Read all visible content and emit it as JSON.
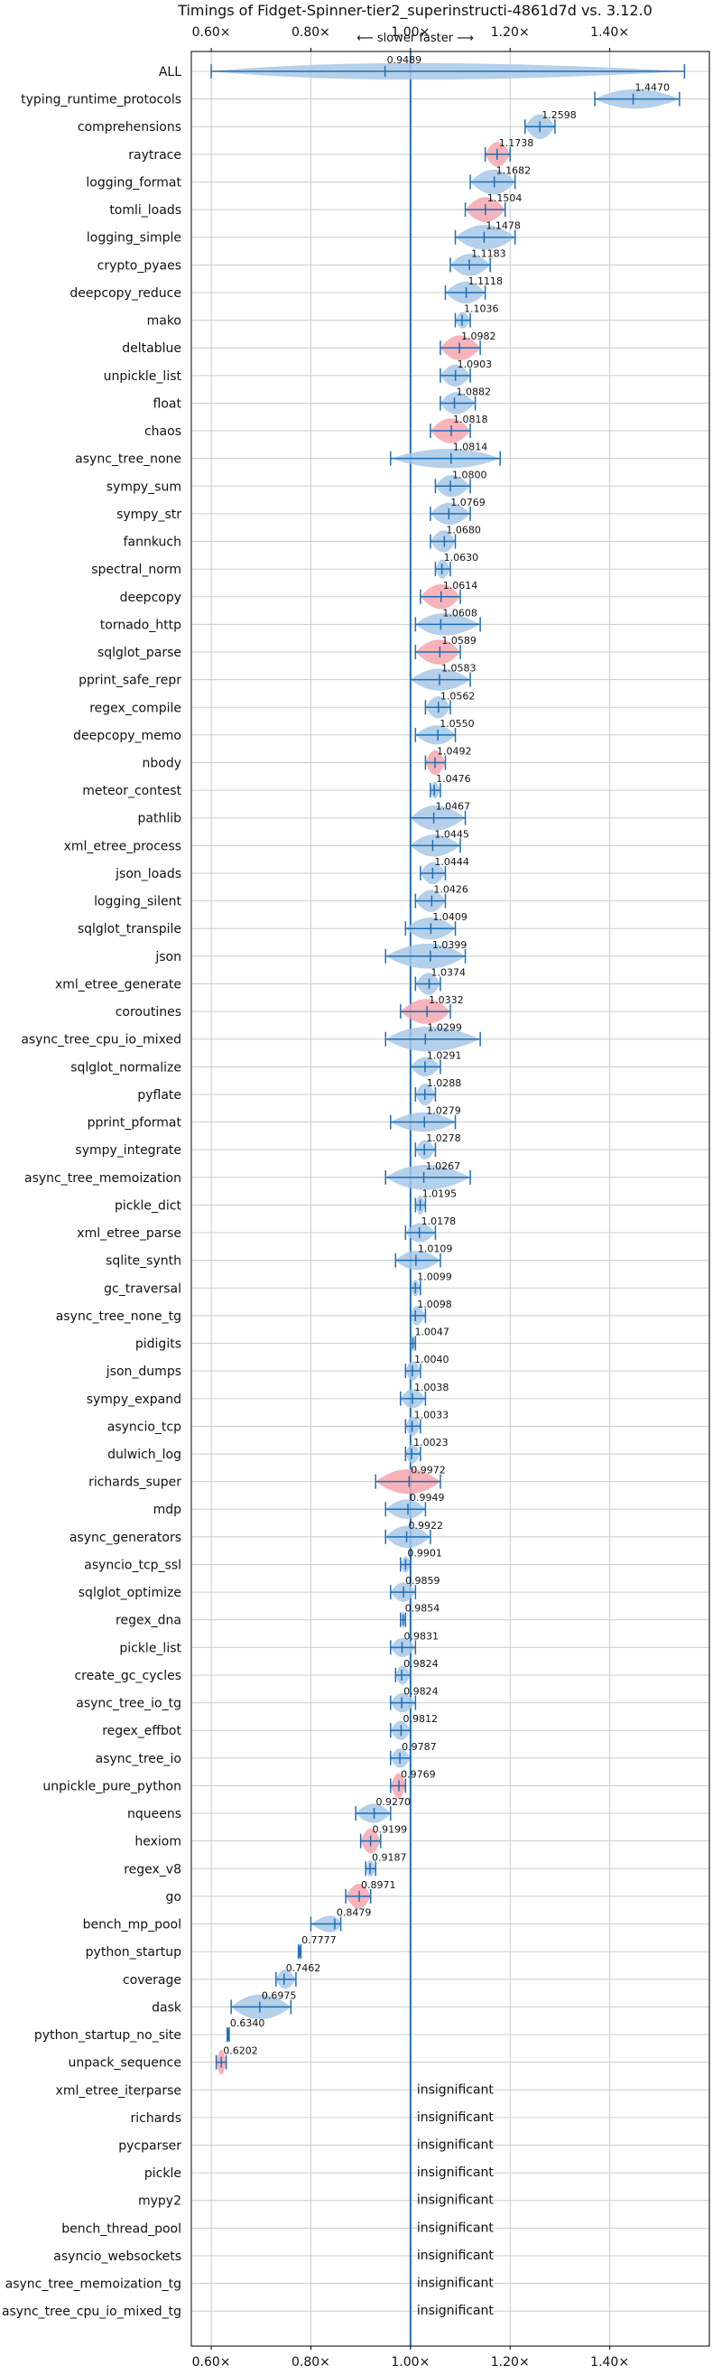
{
  "chart_data": {
    "type": "violin",
    "title": "Timings of Fidget-Spinner-tier2_superinstructi-4861d7d vs. 3.12.0",
    "subtitle": "⟵ slower   faster ⟶",
    "xlim": [
      0.56,
      1.6
    ],
    "xticks": [
      {
        "value": 0.6,
        "label": "0.60×"
      },
      {
        "value": 0.8,
        "label": "0.80×"
      },
      {
        "value": 1.0,
        "label": "1.00×"
      },
      {
        "value": 1.2,
        "label": "1.20×"
      },
      {
        "value": 1.4,
        "label": "1.40×"
      }
    ],
    "grid": true,
    "reference_line": 1.0,
    "colors": {
      "faster": "#a7c8e6",
      "slower": "#f4a6ae",
      "line": "#1f6fb4",
      "grid": "#cccccc"
    },
    "insignificant_text": "insignificant",
    "benchmarks": [
      {
        "name": "ALL",
        "value": 0.9489,
        "label": "0.9489",
        "min": 0.6,
        "max": 1.55,
        "color": "faster",
        "spread": 0.3
      },
      {
        "name": "typing_runtime_protocols",
        "value": 1.447,
        "label": "1.4470",
        "min": 1.37,
        "max": 1.54,
        "color": "faster",
        "spread": 0.35
      },
      {
        "name": "comprehensions",
        "value": 1.2598,
        "label": "1.2598",
        "min": 1.23,
        "max": 1.29,
        "color": "faster",
        "spread": 0.45
      },
      {
        "name": "raytrace",
        "value": 1.1738,
        "label": "1.1738",
        "min": 1.15,
        "max": 1.2,
        "color": "slower",
        "spread": 0.45
      },
      {
        "name": "logging_format",
        "value": 1.1682,
        "label": "1.1682",
        "min": 1.12,
        "max": 1.21,
        "color": "faster",
        "spread": 0.45
      },
      {
        "name": "tomli_loads",
        "value": 1.1504,
        "label": "1.1504",
        "min": 1.11,
        "max": 1.19,
        "color": "slower",
        "spread": 0.45
      },
      {
        "name": "logging_simple",
        "value": 1.1478,
        "label": "1.1478",
        "min": 1.09,
        "max": 1.21,
        "color": "faster",
        "spread": 0.45
      },
      {
        "name": "crypto_pyaes",
        "value": 1.1183,
        "label": "1.1183",
        "min": 1.08,
        "max": 1.16,
        "color": "faster",
        "spread": 0.4
      },
      {
        "name": "deepcopy_reduce",
        "value": 1.1118,
        "label": "1.1118",
        "min": 1.07,
        "max": 1.15,
        "color": "faster",
        "spread": 0.4
      },
      {
        "name": "mako",
        "value": 1.1036,
        "label": "1.1036",
        "min": 1.09,
        "max": 1.12,
        "color": "faster",
        "spread": 0.3
      },
      {
        "name": "deltablue",
        "value": 1.0982,
        "label": "1.0982",
        "min": 1.06,
        "max": 1.14,
        "color": "slower",
        "spread": 0.45
      },
      {
        "name": "unpickle_list",
        "value": 1.0903,
        "label": "1.0903",
        "min": 1.06,
        "max": 1.12,
        "color": "faster",
        "spread": 0.4
      },
      {
        "name": "float",
        "value": 1.0882,
        "label": "1.0882",
        "min": 1.06,
        "max": 1.13,
        "color": "faster",
        "spread": 0.4
      },
      {
        "name": "chaos",
        "value": 1.0818,
        "label": "1.0818",
        "min": 1.04,
        "max": 1.12,
        "color": "slower",
        "spread": 0.45
      },
      {
        "name": "async_tree_none",
        "value": 1.0814,
        "label": "1.0814",
        "min": 0.96,
        "max": 1.18,
        "color": "faster",
        "spread": 0.35
      },
      {
        "name": "sympy_sum",
        "value": 1.08,
        "label": "1.0800",
        "min": 1.05,
        "max": 1.12,
        "color": "faster",
        "spread": 0.4
      },
      {
        "name": "sympy_str",
        "value": 1.0769,
        "label": "1.0769",
        "min": 1.04,
        "max": 1.12,
        "color": "faster",
        "spread": 0.4
      },
      {
        "name": "fannkuch",
        "value": 1.068,
        "label": "1.0680",
        "min": 1.04,
        "max": 1.09,
        "color": "faster",
        "spread": 0.4
      },
      {
        "name": "spectral_norm",
        "value": 1.063,
        "label": "1.0630",
        "min": 1.05,
        "max": 1.08,
        "color": "faster",
        "spread": 0.35
      },
      {
        "name": "deepcopy",
        "value": 1.0614,
        "label": "1.0614",
        "min": 1.02,
        "max": 1.1,
        "color": "slower",
        "spread": 0.45
      },
      {
        "name": "tornado_http",
        "value": 1.0608,
        "label": "1.0608",
        "min": 1.01,
        "max": 1.14,
        "color": "faster",
        "spread": 0.4
      },
      {
        "name": "sqlglot_parse",
        "value": 1.0589,
        "label": "1.0589",
        "min": 1.01,
        "max": 1.1,
        "color": "slower",
        "spread": 0.45
      },
      {
        "name": "pprint_safe_repr",
        "value": 1.0583,
        "label": "1.0583",
        "min": 1.0,
        "max": 1.12,
        "color": "faster",
        "spread": 0.4
      },
      {
        "name": "regex_compile",
        "value": 1.0562,
        "label": "1.0562",
        "min": 1.03,
        "max": 1.08,
        "color": "faster",
        "spread": 0.4
      },
      {
        "name": "deepcopy_memo",
        "value": 1.055,
        "label": "1.0550",
        "min": 1.01,
        "max": 1.09,
        "color": "faster",
        "spread": 0.35
      },
      {
        "name": "nbody",
        "value": 1.0492,
        "label": "1.0492",
        "min": 1.03,
        "max": 1.07,
        "color": "slower",
        "spread": 0.45
      },
      {
        "name": "meteor_contest",
        "value": 1.0476,
        "label": "1.0476",
        "min": 1.04,
        "max": 1.06,
        "color": "faster",
        "spread": 0.3
      },
      {
        "name": "pathlib",
        "value": 1.0467,
        "label": "1.0467",
        "min": 1.0,
        "max": 1.11,
        "color": "faster",
        "spread": 0.45
      },
      {
        "name": "xml_etree_process",
        "value": 1.0445,
        "label": "1.0445",
        "min": 1.0,
        "max": 1.1,
        "color": "faster",
        "spread": 0.4
      },
      {
        "name": "json_loads",
        "value": 1.0444,
        "label": "1.0444",
        "min": 1.02,
        "max": 1.07,
        "color": "faster",
        "spread": 0.4
      },
      {
        "name": "logging_silent",
        "value": 1.0426,
        "label": "1.0426",
        "min": 1.01,
        "max": 1.07,
        "color": "faster",
        "spread": 0.4
      },
      {
        "name": "sqlglot_transpile",
        "value": 1.0409,
        "label": "1.0409",
        "min": 0.99,
        "max": 1.09,
        "color": "faster",
        "spread": 0.4
      },
      {
        "name": "json",
        "value": 1.0399,
        "label": "1.0399",
        "min": 0.95,
        "max": 1.11,
        "color": "faster",
        "spread": 0.45
      },
      {
        "name": "xml_etree_generate",
        "value": 1.0374,
        "label": "1.0374",
        "min": 1.01,
        "max": 1.06,
        "color": "faster",
        "spread": 0.4
      },
      {
        "name": "coroutines",
        "value": 1.0332,
        "label": "1.0332",
        "min": 0.98,
        "max": 1.08,
        "color": "slower",
        "spread": 0.45
      },
      {
        "name": "async_tree_cpu_io_mixed",
        "value": 1.0299,
        "label": "1.0299",
        "min": 0.95,
        "max": 1.14,
        "color": "faster",
        "spread": 0.45
      },
      {
        "name": "sqlglot_normalize",
        "value": 1.0291,
        "label": "1.0291",
        "min": 1.0,
        "max": 1.06,
        "color": "faster",
        "spread": 0.35
      },
      {
        "name": "pyflate",
        "value": 1.0288,
        "label": "1.0288",
        "min": 1.01,
        "max": 1.05,
        "color": "faster",
        "spread": 0.4
      },
      {
        "name": "pprint_pformat",
        "value": 1.0279,
        "label": "1.0279",
        "min": 0.96,
        "max": 1.09,
        "color": "faster",
        "spread": 0.35
      },
      {
        "name": "sympy_integrate",
        "value": 1.0278,
        "label": "1.0278",
        "min": 1.01,
        "max": 1.05,
        "color": "faster",
        "spread": 0.35
      },
      {
        "name": "async_tree_memoization",
        "value": 1.0267,
        "label": "1.0267",
        "min": 0.95,
        "max": 1.12,
        "color": "faster",
        "spread": 0.45
      },
      {
        "name": "pickle_dict",
        "value": 1.0195,
        "label": "1.0195",
        "min": 1.01,
        "max": 1.03,
        "color": "faster",
        "spread": 0.35
      },
      {
        "name": "xml_etree_parse",
        "value": 1.0178,
        "label": "1.0178",
        "min": 0.99,
        "max": 1.05,
        "color": "faster",
        "spread": 0.35
      },
      {
        "name": "sqlite_synth",
        "value": 1.0109,
        "label": "1.0109",
        "min": 0.97,
        "max": 1.06,
        "color": "faster",
        "spread": 0.35
      },
      {
        "name": "gc_traversal",
        "value": 1.0099,
        "label": "1.0099",
        "min": 1.0,
        "max": 1.02,
        "color": "faster",
        "spread": 0.3
      },
      {
        "name": "async_tree_none_tg",
        "value": 1.0098,
        "label": "1.0098",
        "min": 1.0,
        "max": 1.03,
        "color": "faster",
        "spread": 0.35
      },
      {
        "name": "pidigits",
        "value": 1.0047,
        "label": "1.0047",
        "min": 1.0,
        "max": 1.01,
        "color": "faster",
        "spread": 0.3
      },
      {
        "name": "json_dumps",
        "value": 1.004,
        "label": "1.0040",
        "min": 0.99,
        "max": 1.02,
        "color": "faster",
        "spread": 0.35
      },
      {
        "name": "sympy_expand",
        "value": 1.0038,
        "label": "1.0038",
        "min": 0.98,
        "max": 1.03,
        "color": "faster",
        "spread": 0.35
      },
      {
        "name": "asyncio_tcp",
        "value": 1.0033,
        "label": "1.0033",
        "min": 0.99,
        "max": 1.02,
        "color": "faster",
        "spread": 0.35
      },
      {
        "name": "dulwich_log",
        "value": 1.0023,
        "label": "1.0023",
        "min": 0.99,
        "max": 1.02,
        "color": "faster",
        "spread": 0.35
      },
      {
        "name": "richards_super",
        "value": 0.9972,
        "label": "0.9972",
        "min": 0.93,
        "max": 1.06,
        "color": "slower",
        "spread": 0.45
      },
      {
        "name": "mdp",
        "value": 0.9949,
        "label": "0.9949",
        "min": 0.95,
        "max": 1.03,
        "color": "faster",
        "spread": 0.35
      },
      {
        "name": "async_generators",
        "value": 0.9922,
        "label": "0.9922",
        "min": 0.95,
        "max": 1.04,
        "color": "faster",
        "spread": 0.4
      },
      {
        "name": "asyncio_tcp_ssl",
        "value": 0.9901,
        "label": "0.9901",
        "min": 0.98,
        "max": 1.0,
        "color": "faster",
        "spread": 0.3
      },
      {
        "name": "sqlglot_optimize",
        "value": 0.9859,
        "label": "0.9859",
        "min": 0.96,
        "max": 1.01,
        "color": "faster",
        "spread": 0.35
      },
      {
        "name": "regex_dna",
        "value": 0.9854,
        "label": "0.9854",
        "min": 0.98,
        "max": 0.99,
        "color": "faster",
        "spread": 0.3
      },
      {
        "name": "pickle_list",
        "value": 0.9831,
        "label": "0.9831",
        "min": 0.96,
        "max": 1.01,
        "color": "faster",
        "spread": 0.35
      },
      {
        "name": "create_gc_cycles",
        "value": 0.9824,
        "label": "0.9824",
        "min": 0.97,
        "max": 1.0,
        "color": "faster",
        "spread": 0.35
      },
      {
        "name": "async_tree_io_tg",
        "value": 0.9824,
        "label": "0.9824",
        "min": 0.96,
        "max": 1.01,
        "color": "faster",
        "spread": 0.35
      },
      {
        "name": "regex_effbot",
        "value": 0.9812,
        "label": "0.9812",
        "min": 0.96,
        "max": 1.0,
        "color": "faster",
        "spread": 0.35
      },
      {
        "name": "async_tree_io",
        "value": 0.9787,
        "label": "0.9787",
        "min": 0.96,
        "max": 1.0,
        "color": "faster",
        "spread": 0.35
      },
      {
        "name": "unpickle_pure_python",
        "value": 0.9769,
        "label": "0.9769",
        "min": 0.96,
        "max": 0.99,
        "color": "slower",
        "spread": 0.45
      },
      {
        "name": "nqueens",
        "value": 0.927,
        "label": "0.9270",
        "min": 0.89,
        "max": 0.96,
        "color": "faster",
        "spread": 0.35
      },
      {
        "name": "hexiom",
        "value": 0.9199,
        "label": "0.9199",
        "min": 0.9,
        "max": 0.94,
        "color": "slower",
        "spread": 0.45
      },
      {
        "name": "regex_v8",
        "value": 0.9187,
        "label": "0.9187",
        "min": 0.91,
        "max": 0.93,
        "color": "faster",
        "spread": 0.3
      },
      {
        "name": "go",
        "value": 0.8971,
        "label": "0.8971",
        "min": 0.87,
        "max": 0.92,
        "color": "slower",
        "spread": 0.45
      },
      {
        "name": "bench_mp_pool",
        "value": 0.8479,
        "label": "0.8479",
        "min": 0.8,
        "max": 0.86,
        "color": "faster",
        "spread": 0.3
      },
      {
        "name": "python_startup",
        "value": 0.7777,
        "label": "0.7777",
        "min": 0.775,
        "max": 0.78,
        "color": "faster",
        "spread": 0.3
      },
      {
        "name": "coverage",
        "value": 0.7462,
        "label": "0.7462",
        "min": 0.73,
        "max": 0.77,
        "color": "faster",
        "spread": 0.35
      },
      {
        "name": "dask",
        "value": 0.6975,
        "label": "0.6975",
        "min": 0.64,
        "max": 0.76,
        "color": "faster",
        "spread": 0.45
      },
      {
        "name": "python_startup_no_site",
        "value": 0.634,
        "label": "0.6340",
        "min": 0.632,
        "max": 0.636,
        "color": "faster",
        "spread": 0.3
      },
      {
        "name": "unpack_sequence",
        "value": 0.6202,
        "label": "0.6202",
        "min": 0.61,
        "max": 0.63,
        "color": "slower",
        "spread": 0.45
      },
      {
        "name": "xml_etree_iterparse",
        "insignificant": true
      },
      {
        "name": "richards",
        "insignificant": true
      },
      {
        "name": "pycparser",
        "insignificant": true
      },
      {
        "name": "pickle",
        "insignificant": true
      },
      {
        "name": "mypy2",
        "insignificant": true
      },
      {
        "name": "bench_thread_pool",
        "insignificant": true
      },
      {
        "name": "asyncio_websockets",
        "insignificant": true
      },
      {
        "name": "async_tree_memoization_tg",
        "insignificant": true
      },
      {
        "name": "async_tree_cpu_io_mixed_tg",
        "insignificant": true
      }
    ]
  }
}
